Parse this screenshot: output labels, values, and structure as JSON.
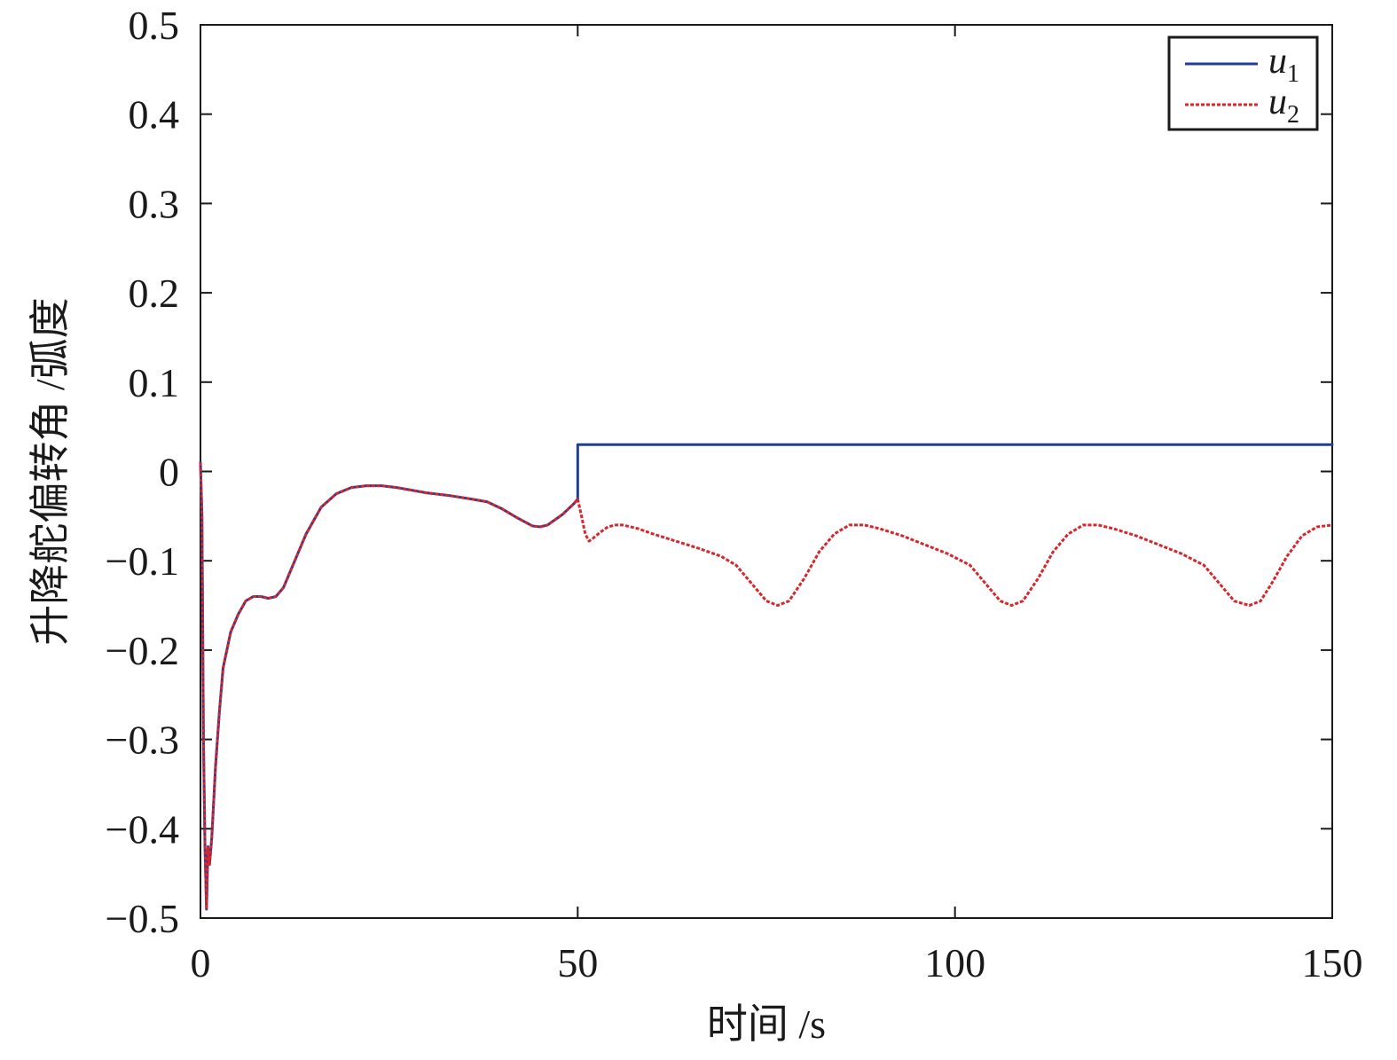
{
  "chart_data": {
    "type": "line",
    "title": "",
    "xlabel": "时间 /s",
    "ylabel": "升降舵偏转角 /弧度",
    "xlim": [
      0,
      150
    ],
    "ylim": [
      -0.5,
      0.5
    ],
    "xticks": [
      0,
      50,
      100,
      150
    ],
    "xtick_labels": [
      "0",
      "50",
      "100",
      "150"
    ],
    "yticks": [
      -0.5,
      -0.4,
      -0.3,
      -0.2,
      -0.1,
      0,
      0.1,
      0.2,
      0.3,
      0.4,
      0.5
    ],
    "ytick_labels": [
      "−0.5",
      "−0.4",
      "−0.3",
      "−0.2",
      "−0.1",
      "0",
      "0.1",
      "0.2",
      "0.3",
      "0.4",
      "0.5"
    ],
    "grid": false,
    "legend_position": "top-right",
    "series": [
      {
        "name": "u1",
        "legend_base": "u",
        "legend_sub": "1",
        "color": "#1f3d99",
        "style": "solid",
        "points": [
          [
            0,
            0.01
          ],
          [
            0.2,
            -0.05
          ],
          [
            0.4,
            -0.3
          ],
          [
            0.6,
            -0.42
          ],
          [
            0.8,
            -0.49
          ],
          [
            1.0,
            -0.42
          ],
          [
            1.2,
            -0.44
          ],
          [
            1.5,
            -0.41
          ],
          [
            2,
            -0.33
          ],
          [
            2.5,
            -0.27
          ],
          [
            3,
            -0.22
          ],
          [
            4,
            -0.18
          ],
          [
            5,
            -0.16
          ],
          [
            6,
            -0.145
          ],
          [
            7,
            -0.14
          ],
          [
            8,
            -0.14
          ],
          [
            9,
            -0.142
          ],
          [
            10,
            -0.14
          ],
          [
            11,
            -0.13
          ],
          [
            12,
            -0.11
          ],
          [
            13,
            -0.09
          ],
          [
            14,
            -0.07
          ],
          [
            16,
            -0.04
          ],
          [
            18,
            -0.025
          ],
          [
            20,
            -0.018
          ],
          [
            22,
            -0.016
          ],
          [
            24,
            -0.016
          ],
          [
            26,
            -0.018
          ],
          [
            28,
            -0.021
          ],
          [
            30,
            -0.024
          ],
          [
            33,
            -0.027
          ],
          [
            36,
            -0.031
          ],
          [
            38,
            -0.034
          ],
          [
            40,
            -0.042
          ],
          [
            42,
            -0.052
          ],
          [
            44,
            -0.061
          ],
          [
            45,
            -0.062
          ],
          [
            46,
            -0.06
          ],
          [
            48,
            -0.048
          ],
          [
            49.5,
            -0.036
          ],
          [
            49.9,
            -0.032
          ],
          [
            50,
            -0.031
          ],
          [
            50,
            0.03
          ],
          [
            60,
            0.03
          ],
          [
            75,
            0.03
          ],
          [
            90,
            0.03
          ],
          [
            100,
            0.03
          ],
          [
            120,
            0.03
          ],
          [
            135,
            0.03
          ],
          [
            150,
            0.03
          ]
        ]
      },
      {
        "name": "u2",
        "legend_base": "u",
        "legend_sub": "2",
        "color": "#d7262c",
        "style": "dashed",
        "points": [
          [
            0,
            0.01
          ],
          [
            0.2,
            -0.05
          ],
          [
            0.4,
            -0.3
          ],
          [
            0.6,
            -0.42
          ],
          [
            0.8,
            -0.49
          ],
          [
            1.0,
            -0.42
          ],
          [
            1.2,
            -0.44
          ],
          [
            1.5,
            -0.41
          ],
          [
            2,
            -0.33
          ],
          [
            2.5,
            -0.27
          ],
          [
            3,
            -0.22
          ],
          [
            4,
            -0.18
          ],
          [
            5,
            -0.16
          ],
          [
            6,
            -0.145
          ],
          [
            7,
            -0.14
          ],
          [
            8,
            -0.14
          ],
          [
            9,
            -0.142
          ],
          [
            10,
            -0.14
          ],
          [
            11,
            -0.13
          ],
          [
            12,
            -0.11
          ],
          [
            13,
            -0.09
          ],
          [
            14,
            -0.07
          ],
          [
            16,
            -0.04
          ],
          [
            18,
            -0.025
          ],
          [
            20,
            -0.018
          ],
          [
            22,
            -0.016
          ],
          [
            24,
            -0.016
          ],
          [
            26,
            -0.018
          ],
          [
            28,
            -0.021
          ],
          [
            30,
            -0.024
          ],
          [
            33,
            -0.027
          ],
          [
            36,
            -0.031
          ],
          [
            38,
            -0.034
          ],
          [
            40,
            -0.042
          ],
          [
            42,
            -0.052
          ],
          [
            44,
            -0.061
          ],
          [
            45,
            -0.062
          ],
          [
            46,
            -0.06
          ],
          [
            48,
            -0.048
          ],
          [
            49.5,
            -0.036
          ],
          [
            49.9,
            -0.032
          ],
          [
            50,
            -0.031
          ],
          [
            50.5,
            -0.05
          ],
          [
            51,
            -0.07
          ],
          [
            51.5,
            -0.078
          ],
          [
            52,
            -0.075
          ],
          [
            53,
            -0.068
          ],
          [
            54,
            -0.062
          ],
          [
            55,
            -0.06
          ],
          [
            56,
            -0.06
          ],
          [
            58,
            -0.064
          ],
          [
            60,
            -0.07
          ],
          [
            63,
            -0.078
          ],
          [
            66,
            -0.086
          ],
          [
            69,
            -0.095
          ],
          [
            71,
            -0.105
          ],
          [
            73,
            -0.125
          ],
          [
            75,
            -0.145
          ],
          [
            76.5,
            -0.15
          ],
          [
            78,
            -0.145
          ],
          [
            80,
            -0.12
          ],
          [
            82,
            -0.09
          ],
          [
            84,
            -0.07
          ],
          [
            86,
            -0.06
          ],
          [
            88,
            -0.06
          ],
          [
            90,
            -0.064
          ],
          [
            93,
            -0.072
          ],
          [
            96,
            -0.082
          ],
          [
            99,
            -0.092
          ],
          [
            102,
            -0.105
          ],
          [
            104,
            -0.125
          ],
          [
            106,
            -0.145
          ],
          [
            107.5,
            -0.15
          ],
          [
            109,
            -0.145
          ],
          [
            111,
            -0.12
          ],
          [
            113,
            -0.09
          ],
          [
            115,
            -0.07
          ],
          [
            117,
            -0.06
          ],
          [
            119,
            -0.06
          ],
          [
            121,
            -0.064
          ],
          [
            124,
            -0.072
          ],
          [
            127,
            -0.082
          ],
          [
            130,
            -0.092
          ],
          [
            133,
            -0.105
          ],
          [
            135,
            -0.125
          ],
          [
            137,
            -0.145
          ],
          [
            139,
            -0.15
          ],
          [
            140.5,
            -0.145
          ],
          [
            142,
            -0.125
          ],
          [
            144,
            -0.095
          ],
          [
            146,
            -0.072
          ],
          [
            148,
            -0.062
          ],
          [
            150,
            -0.06
          ]
        ]
      }
    ]
  }
}
